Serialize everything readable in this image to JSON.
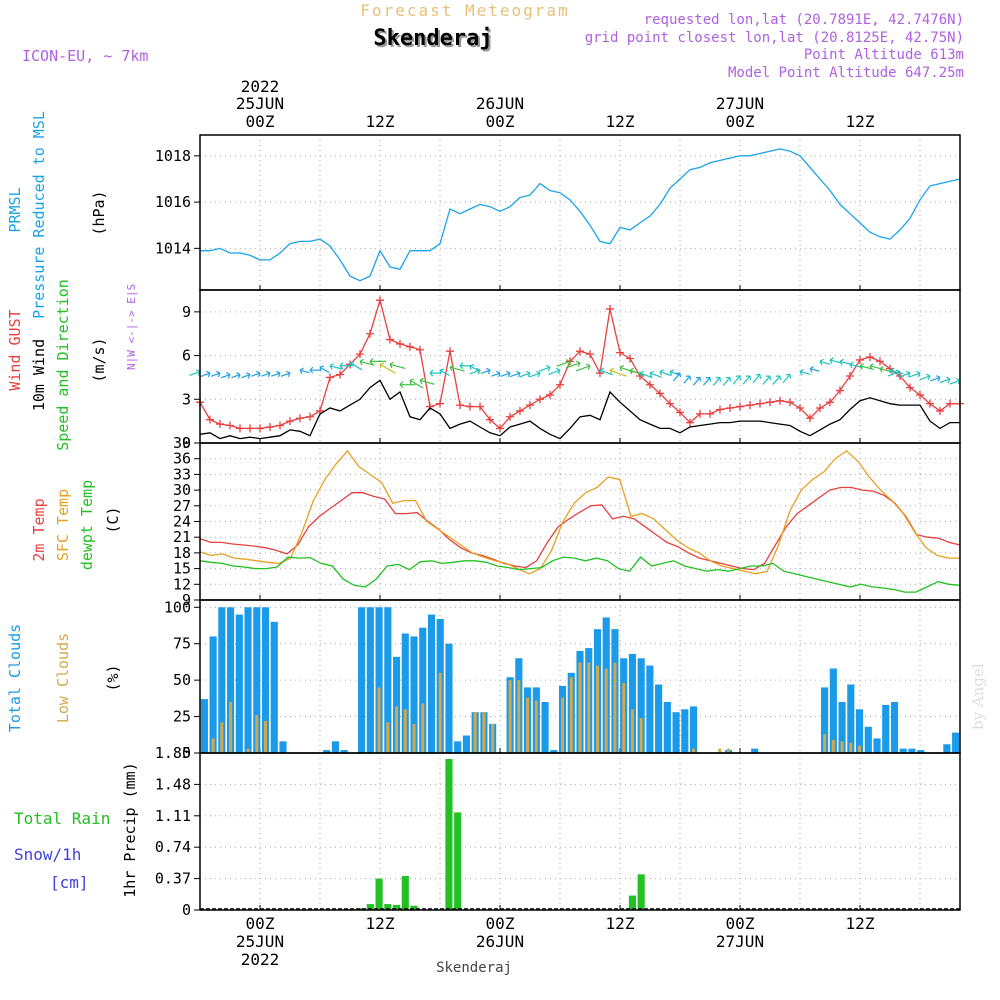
{
  "header": {
    "subtitle": "Forecast Meteogram",
    "location": "Skenderaj",
    "model": "ICON-EU, ~ 7km",
    "requested": "requested lon,lat (20.7891E, 42.7476N)",
    "gridpoint": "grid point closest lon,lat (20.8125E, 42.75N)",
    "point_alt": "Point Altitude 613m",
    "model_alt": "Model Point Altitude 647.25m",
    "footer": "Skenderaj",
    "watermark": "by Angel"
  },
  "time_axis": {
    "top_labels": [
      {
        "l1": "2022",
        "l2": "25JUN",
        "l3": "00Z",
        "h": 6
      },
      {
        "l1": "",
        "l2": "",
        "l3": "12Z",
        "h": 18
      },
      {
        "l1": "",
        "l2": "26JUN",
        "l3": "00Z",
        "h": 30
      },
      {
        "l1": "",
        "l2": "",
        "l3": "12Z",
        "h": 42
      },
      {
        "l1": "",
        "l2": "27JUN",
        "l3": "00Z",
        "h": 54
      },
      {
        "l1": "",
        "l2": "",
        "l3": "12Z",
        "h": 66
      }
    ],
    "bottom_labels": [
      {
        "l1": "00Z",
        "l2": "25JUN",
        "l3": "2022",
        "h": 6
      },
      {
        "l1": "12Z",
        "l2": "",
        "l3": "",
        "h": 18
      },
      {
        "l1": "00Z",
        "l2": "26JUN",
        "l3": "",
        "h": 30
      },
      {
        "l1": "12Z",
        "l2": "",
        "l3": "",
        "h": 42
      },
      {
        "l1": "00Z",
        "l2": "27JUN",
        "l3": "",
        "h": 54
      },
      {
        "l1": "12Z",
        "l2": "",
        "l3": "",
        "h": 66
      }
    ]
  },
  "chart_data": [
    {
      "type": "line",
      "panel": "pressure",
      "labels": {
        "a": "PRMSL",
        "b": "Pressure Reduced to MSL",
        "unit": "(hPa)"
      },
      "ylim": [
        1012.2,
        1018.9
      ],
      "yticks": [
        1014,
        1016,
        1018
      ],
      "color": "#1aa3e8",
      "x": [
        0,
        1,
        2,
        3,
        4,
        5,
        6,
        7,
        8,
        9,
        10,
        11,
        12,
        13,
        14,
        15,
        16,
        17,
        18,
        19,
        20,
        21,
        22,
        23,
        24,
        25,
        26,
        27,
        28,
        29,
        30,
        31,
        32,
        33,
        34,
        35,
        36,
        37,
        38,
        39,
        40,
        41,
        42,
        43,
        44,
        45,
        46,
        47,
        48,
        49,
        50,
        51,
        52,
        53,
        54,
        55,
        56,
        57,
        58,
        59,
        60,
        61,
        62,
        63,
        64,
        65,
        66,
        67,
        68,
        69,
        70,
        71,
        72,
        73,
        74,
        75,
        76
      ],
      "values": [
        1013.9,
        1013.9,
        1014.0,
        1013.8,
        1013.8,
        1013.7,
        1013.5,
        1013.5,
        1013.8,
        1014.2,
        1014.3,
        1014.3,
        1014.4,
        1014.1,
        1013.5,
        1012.8,
        1012.6,
        1012.8,
        1013.9,
        1013.2,
        1013.1,
        1013.9,
        1013.9,
        1013.9,
        1014.2,
        1015.7,
        1015.5,
        1015.7,
        1015.9,
        1015.8,
        1015.6,
        1015.8,
        1016.2,
        1016.3,
        1016.8,
        1016.5,
        1016.4,
        1016.1,
        1015.6,
        1015.0,
        1014.3,
        1014.2,
        1014.9,
        1014.8,
        1015.1,
        1015.4,
        1015.9,
        1016.6,
        1017.0,
        1017.4,
        1017.5,
        1017.7,
        1017.8,
        1017.9,
        1018.0,
        1018.0,
        1018.1,
        1018.2,
        1018.3,
        1018.2,
        1018.0,
        1017.5,
        1017.0,
        1016.5,
        1015.9,
        1015.5,
        1015.1,
        1014.7,
        1014.5,
        1014.4,
        1014.8,
        1015.3,
        1016.1,
        1016.7,
        1016.8,
        1016.9,
        1017.0
      ]
    },
    {
      "type": "line",
      "panel": "wind",
      "labels": {
        "gust": "Wind GUST",
        "wind": "10m Wind",
        "dir": "Speed and Direction",
        "unit": "(m/s)",
        "compass": "N|W <-|-> E|S"
      },
      "ylim": [
        0,
        10.5
      ],
      "yticks": [
        0,
        3,
        6,
        9
      ],
      "series": [
        {
          "name": "Wind GUST",
          "color": "#e84040",
          "values": [
            2.8,
            1.6,
            1.3,
            1.2,
            1.0,
            1.0,
            1.0,
            1.1,
            1.2,
            1.5,
            1.7,
            1.8,
            2.2,
            4.5,
            4.7,
            5.4,
            6.1,
            7.5,
            9.8,
            7.1,
            6.8,
            6.6,
            6.4,
            2.5,
            2.7,
            6.3,
            2.6,
            2.5,
            2.5,
            1.6,
            1.0,
            1.8,
            2.2,
            2.6,
            3.0,
            3.3,
            4.0,
            5.6,
            6.3,
            6.1,
            4.8,
            9.2,
            6.2,
            5.8,
            4.6,
            4.0,
            3.4,
            2.7,
            2.1,
            1.4,
            2.0,
            2.0,
            2.3,
            2.4,
            2.5,
            2.6,
            2.7,
            2.8,
            2.9,
            2.8,
            2.4,
            1.7,
            2.4,
            2.8,
            3.6,
            4.6,
            5.7,
            5.9,
            5.6,
            5.1,
            4.6,
            3.8,
            3.3,
            2.7,
            2.2,
            2.7,
            2.7
          ]
        },
        {
          "name": "10m Wind",
          "color": "#000000",
          "values": [
            0.6,
            0.7,
            0.3,
            0.5,
            0.3,
            0.4,
            0.3,
            0.4,
            0.5,
            0.9,
            0.8,
            0.5,
            2.0,
            2.4,
            2.2,
            2.6,
            3.0,
            3.8,
            4.3,
            3.0,
            3.5,
            1.8,
            1.6,
            2.4,
            2.0,
            1.0,
            1.3,
            1.5,
            1.1,
            0.7,
            0.5,
            1.1,
            1.3,
            1.5,
            1.0,
            0.6,
            0.3,
            1.0,
            1.8,
            1.9,
            1.6,
            3.5,
            2.8,
            2.2,
            1.6,
            1.3,
            1.0,
            1.0,
            0.7,
            1.1,
            1.2,
            1.3,
            1.4,
            1.4,
            1.5,
            1.5,
            1.5,
            1.4,
            1.3,
            1.2,
            0.8,
            0.5,
            0.9,
            1.3,
            1.6,
            2.3,
            2.9,
            3.1,
            2.9,
            2.7,
            2.6,
            2.6,
            2.6,
            1.5,
            1.0,
            1.4,
            1.4
          ]
        }
      ],
      "arrow_speed": [
        4.9,
        4.8,
        4.8,
        4.7,
        4.7,
        4.7,
        4.8,
        4.8,
        4.8,
        4.8,
        5.0,
        5.0,
        5.2,
        5.3,
        5.3,
        5.5,
        5.6,
        5.6,
        5.4,
        5.4,
        4.0,
        4.3,
        4.3,
        4.8,
        5.0,
        5.2,
        5.3,
        5.3,
        5.0,
        5.0,
        4.8,
        4.8,
        4.8,
        4.8,
        4.8,
        5.2,
        5.0,
        5.6,
        5.5,
        5.3,
        5.0,
        5.0,
        5.2,
        5.0,
        4.8,
        4.8,
        4.9,
        4.9,
        4.8,
        4.6,
        4.5,
        4.5,
        4.5,
        4.5,
        4.6,
        4.6,
        4.7,
        4.6,
        4.6,
        4.7,
        4.9,
        5.1,
        5.6,
        5.7,
        5.6,
        5.4,
        5.3,
        5.3,
        5.1,
        5.0,
        4.9,
        4.8,
        4.8,
        4.6,
        4.5,
        4.4,
        4.3
      ]
    },
    {
      "type": "line",
      "panel": "temperature",
      "labels": {
        "t2m": "2m Temp",
        "sfc": "SFC Temp",
        "dew": "dewpt Temp",
        "unit": "(C)"
      },
      "ylim": [
        9,
        39
      ],
      "yticks": [
        9,
        12,
        15,
        18,
        21,
        24,
        27,
        30,
        33,
        36,
        39
      ],
      "series": [
        {
          "name": "2m Temp",
          "color": "#e84040",
          "values": [
            20.7,
            20.0,
            20.0,
            19.7,
            19.5,
            19.3,
            19.0,
            18.5,
            17.8,
            19.5,
            23.0,
            25.0,
            26.5,
            28.0,
            29.5,
            29.5,
            28.8,
            28.3,
            25.5,
            25.5,
            25.7,
            24.0,
            22.5,
            20.5,
            19.0,
            18.0,
            17.5,
            16.8,
            16.0,
            15.5,
            15.2,
            16.5,
            20.0,
            23.0,
            24.5,
            25.8,
            27.0,
            27.2,
            24.5,
            25.0,
            24.5,
            23.0,
            21.5,
            20.0,
            19.2,
            18.0,
            17.0,
            16.5,
            16.0,
            15.5,
            15.0,
            14.8,
            16.0,
            19.5,
            23.0,
            25.5,
            27.0,
            28.5,
            30.0,
            30.5,
            30.5,
            30.0,
            29.8,
            29.0,
            27.5,
            25.0,
            21.5,
            21.0,
            20.8,
            20.0,
            19.5
          ]
        },
        {
          "name": "SFC Temp",
          "color": "#e8a020",
          "values": [
            18.2,
            17.5,
            17.8,
            17.0,
            16.8,
            16.5,
            16.2,
            16.0,
            17.0,
            22.0,
            28.0,
            32.0,
            35.0,
            37.5,
            34.5,
            33.0,
            31.5,
            27.5,
            28.0,
            28.0,
            24.0,
            22.5,
            21.0,
            19.5,
            18.0,
            17.2,
            16.5,
            16.0,
            15.0,
            14.0,
            15.0,
            18.5,
            24.0,
            27.5,
            29.5,
            30.5,
            32.5,
            32.0,
            25.0,
            25.5,
            24.5,
            22.5,
            20.5,
            19.0,
            18.0,
            16.5,
            15.5,
            15.0,
            14.5,
            14.0,
            14.5,
            19.5,
            26.0,
            30.0,
            32.0,
            33.5,
            36.0,
            37.5,
            35.5,
            32.5,
            30.0,
            28.0,
            25.5,
            22.0,
            19.0,
            17.5,
            17.0,
            17.0
          ]
        },
        {
          "name": "dewpt Temp",
          "color": "#22c022",
          "values": [
            16.5,
            16.2,
            16.0,
            15.5,
            15.3,
            15.0,
            15.0,
            15.3,
            17.2,
            17.0,
            17.1,
            16.0,
            15.5,
            13.0,
            11.8,
            11.5,
            13.0,
            15.5,
            15.8,
            14.8,
            16.3,
            16.5,
            16.0,
            16.2,
            16.5,
            16.5,
            16.2,
            15.5,
            15.2,
            14.8,
            15.0,
            15.2,
            16.5,
            17.2,
            17.0,
            16.5,
            17.0,
            16.5,
            15.0,
            14.5,
            17.2,
            15.5,
            16.0,
            16.5,
            15.5,
            15.0,
            14.5,
            14.8,
            14.5,
            15.0,
            15.5,
            15.5,
            16.0,
            14.5,
            14.0,
            13.5,
            13.0,
            12.5,
            12.0,
            11.5,
            12.0,
            11.5,
            11.3,
            11.0,
            10.5,
            10.5,
            11.5,
            12.5,
            12.0,
            11.8
          ]
        }
      ]
    },
    {
      "type": "bar",
      "panel": "clouds",
      "labels": {
        "total": "Total Clouds",
        "low": "Low Clouds",
        "unit": "(%)"
      },
      "ylim": [
        0,
        105
      ],
      "yticks": [
        0,
        25,
        50,
        75,
        100
      ],
      "series": [
        {
          "name": "Total Clouds",
          "color": "#1a9ae8",
          "values": [
            37,
            80,
            100,
            100,
            95,
            100,
            100,
            100,
            90,
            8,
            0,
            0,
            0,
            0,
            2,
            8,
            2,
            0,
            100,
            100,
            100,
            100,
            66,
            82,
            80,
            86,
            95,
            92,
            75,
            8,
            12,
            28,
            28,
            20,
            0,
            52,
            65,
            45,
            45,
            35,
            2,
            46,
            55,
            70,
            72,
            85,
            93,
            85,
            65,
            68,
            65,
            60,
            47,
            35,
            28,
            30,
            32,
            0,
            0,
            0,
            2,
            0,
            0,
            3,
            0,
            0,
            0,
            0,
            0,
            0,
            0,
            45,
            58,
            35,
            47,
            30,
            18,
            10,
            33,
            35,
            3,
            3,
            2,
            0,
            0,
            6,
            14
          ]
        },
        {
          "name": "Low Clouds",
          "color": "#d4a84a",
          "values": [
            0,
            10,
            21,
            35,
            0,
            3,
            26,
            22,
            0,
            0,
            0,
            0,
            0,
            0,
            0,
            0,
            0,
            0,
            0,
            0,
            45,
            21,
            32,
            30,
            20,
            34,
            0,
            55,
            0,
            0,
            0,
            28,
            28,
            20,
            0,
            50,
            50,
            38,
            36,
            0,
            0,
            38,
            52,
            62,
            62,
            60,
            58,
            62,
            48,
            30,
            24,
            0,
            0,
            0,
            0,
            0,
            3,
            0,
            0,
            3,
            3,
            0,
            0,
            0,
            0,
            0,
            0,
            0,
            0,
            0,
            0,
            13,
            9,
            8,
            7,
            5,
            0,
            0,
            0,
            0,
            0,
            0,
            0,
            0,
            0,
            0,
            0
          ]
        }
      ]
    },
    {
      "type": "bar",
      "panel": "precip",
      "labels": {
        "rain": "Total  Rain",
        "snow": "Snow/1h",
        "cm": "[cm]",
        "unit": "1hr Precip (mm)"
      },
      "ylim": [
        0,
        1.85
      ],
      "yticks": [
        0,
        0.37,
        0.74,
        1.11,
        1.48,
        1.85
      ],
      "ytick_labels": [
        "0",
        "0.37",
        "0.74",
        "1.11",
        "1.48",
        "1.85"
      ],
      "color": "#22c022",
      "values": [
        0,
        0,
        0,
        0,
        0,
        0,
        0,
        0,
        0,
        0,
        0,
        0,
        0,
        0,
        0,
        0,
        0,
        0.01,
        0.02,
        0.07,
        0.37,
        0.07,
        0.06,
        0.4,
        0.05,
        0,
        0,
        0,
        1.78,
        1.15,
        0,
        0,
        0,
        0,
        0,
        0,
        0,
        0,
        0,
        0,
        0,
        0,
        0,
        0,
        0,
        0,
        0,
        0,
        0,
        0.17,
        0.42,
        0,
        0,
        0,
        0,
        0,
        0,
        0,
        0,
        0,
        0,
        0,
        0,
        0,
        0,
        0,
        0,
        0,
        0,
        0,
        0,
        0,
        0,
        0,
        0,
        0,
        0,
        0,
        0,
        0,
        0,
        0,
        0,
        0,
        0,
        0,
        0
      ]
    }
  ]
}
